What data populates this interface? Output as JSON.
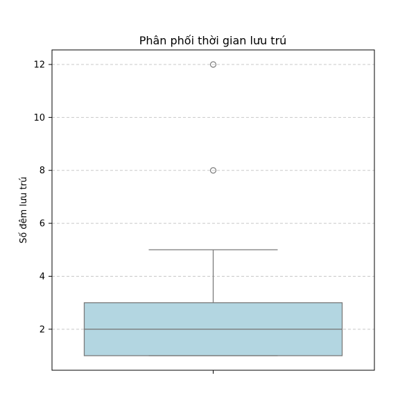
{
  "chart_data": {
    "type": "box",
    "title": "Phân phối thời gian lưu trú",
    "xlabel": "",
    "ylabel": "Số đêm lưu trú",
    "ylim": [
      0.45,
      12.55
    ],
    "yticks": [
      2,
      4,
      6,
      8,
      10,
      12
    ],
    "grid": "y-dashed",
    "box": {
      "min": 1,
      "q1": 1,
      "median": 2,
      "q3": 3,
      "max": 5,
      "outliers": [
        8,
        12
      ]
    },
    "colors": {
      "box_fill": "#b3d6e1",
      "line": "#7a7a7a",
      "grid": "#c8c8c8"
    }
  }
}
